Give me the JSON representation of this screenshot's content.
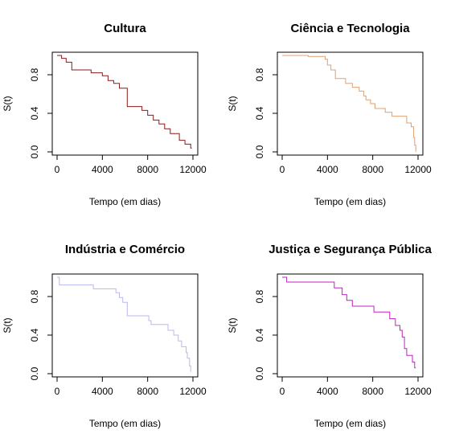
{
  "chart_data": [
    {
      "type": "line",
      "step": true,
      "title": "Cultura",
      "xlabel": "Tempo (em dias)",
      "ylabel": "S(t)",
      "xlim": [
        0,
        12000
      ],
      "ylim": [
        0,
        1
      ],
      "xticks": [
        0,
        4000,
        8000,
        12000
      ],
      "yticks": [
        0.0,
        0.4,
        0.8
      ],
      "xtick_labels": [
        "0",
        "4000",
        "8000",
        "12000"
      ],
      "ytick_labels": [
        "0.0",
        "0.4",
        "0.8"
      ],
      "color": "#8b1a1a",
      "series": [
        {
          "x": [
            0,
            400,
            800,
            1300,
            3000,
            4000,
            4500,
            5000,
            5500,
            6200,
            7500,
            8000,
            8500,
            9000,
            9500,
            10000,
            10800,
            11300,
            11800
          ],
          "y": [
            1.0,
            0.97,
            0.93,
            0.85,
            0.82,
            0.79,
            0.74,
            0.71,
            0.66,
            0.47,
            0.43,
            0.38,
            0.33,
            0.29,
            0.24,
            0.19,
            0.12,
            0.08,
            0.04
          ]
        }
      ],
      "x_end": 11900
    },
    {
      "type": "line",
      "step": true,
      "title": "Ciência e Tecnologia",
      "xlabel": "Tempo (em dias)",
      "ylabel": "S(t)",
      "xlim": [
        0,
        12000
      ],
      "ylim": [
        0,
        1
      ],
      "xticks": [
        0,
        4000,
        8000,
        12000
      ],
      "yticks": [
        0.0,
        0.4,
        0.8
      ],
      "xtick_labels": [
        "0",
        "4000",
        "8000",
        "12000"
      ],
      "ytick_labels": [
        "0.0",
        "0.4",
        "0.8"
      ],
      "color": "#e0a070",
      "series": [
        {
          "x": [
            0,
            2300,
            3800,
            4000,
            4300,
            4700,
            5600,
            6200,
            6800,
            7200,
            7400,
            7800,
            8200,
            9100,
            9700,
            11000,
            11400,
            11600,
            11700,
            11800
          ],
          "y": [
            1.0,
            0.99,
            0.96,
            0.9,
            0.85,
            0.76,
            0.71,
            0.67,
            0.63,
            0.58,
            0.54,
            0.5,
            0.45,
            0.41,
            0.37,
            0.3,
            0.26,
            0.15,
            0.07,
            0.0
          ]
        }
      ],
      "x_end": 11800
    },
    {
      "type": "line",
      "step": true,
      "title": "Indústria e Comércio",
      "xlabel": "Tempo (em dias)",
      "ylabel": "S(t)",
      "xlim": [
        0,
        12000
      ],
      "ylim": [
        0,
        1
      ],
      "xticks": [
        0,
        4000,
        8000,
        12000
      ],
      "yticks": [
        0.0,
        0.4,
        0.8
      ],
      "xtick_labels": [
        "0",
        "4000",
        "8000",
        "12000"
      ],
      "ytick_labels": [
        "0.0",
        "0.4",
        "0.8"
      ],
      "color": "#b8b8f0",
      "series": [
        {
          "x": [
            0,
            200,
            3200,
            5200,
            5500,
            5800,
            6200,
            8100,
            8300,
            9800,
            10300,
            10700,
            11000,
            11400,
            11500,
            11700,
            11800
          ],
          "y": [
            1.0,
            0.92,
            0.88,
            0.84,
            0.79,
            0.74,
            0.6,
            0.55,
            0.51,
            0.45,
            0.4,
            0.34,
            0.28,
            0.22,
            0.16,
            0.08,
            0.02
          ]
        }
      ],
      "x_end": 11800
    },
    {
      "type": "line",
      "step": true,
      "title": "Justiça e Segurança Pública",
      "xlabel": "Tempo (em dias)",
      "ylabel": "S(t)",
      "xlim": [
        0,
        12000
      ],
      "ylim": [
        0,
        1
      ],
      "xticks": [
        0,
        4000,
        8000,
        12000
      ],
      "yticks": [
        0.0,
        0.4,
        0.8
      ],
      "xtick_labels": [
        "0",
        "4000",
        "8000",
        "12000"
      ],
      "ytick_labels": [
        "0.0",
        "0.4",
        "0.8"
      ],
      "color": "#c020c0",
      "series": [
        {
          "x": [
            0,
            400,
            4600,
            5300,
            5700,
            6200,
            8100,
            9500,
            10000,
            10400,
            10600,
            10800,
            11000,
            11500,
            11700
          ],
          "y": [
            1.0,
            0.95,
            0.89,
            0.82,
            0.76,
            0.7,
            0.64,
            0.57,
            0.5,
            0.45,
            0.38,
            0.26,
            0.19,
            0.12,
            0.06
          ]
        }
      ],
      "x_end": 11800
    }
  ]
}
